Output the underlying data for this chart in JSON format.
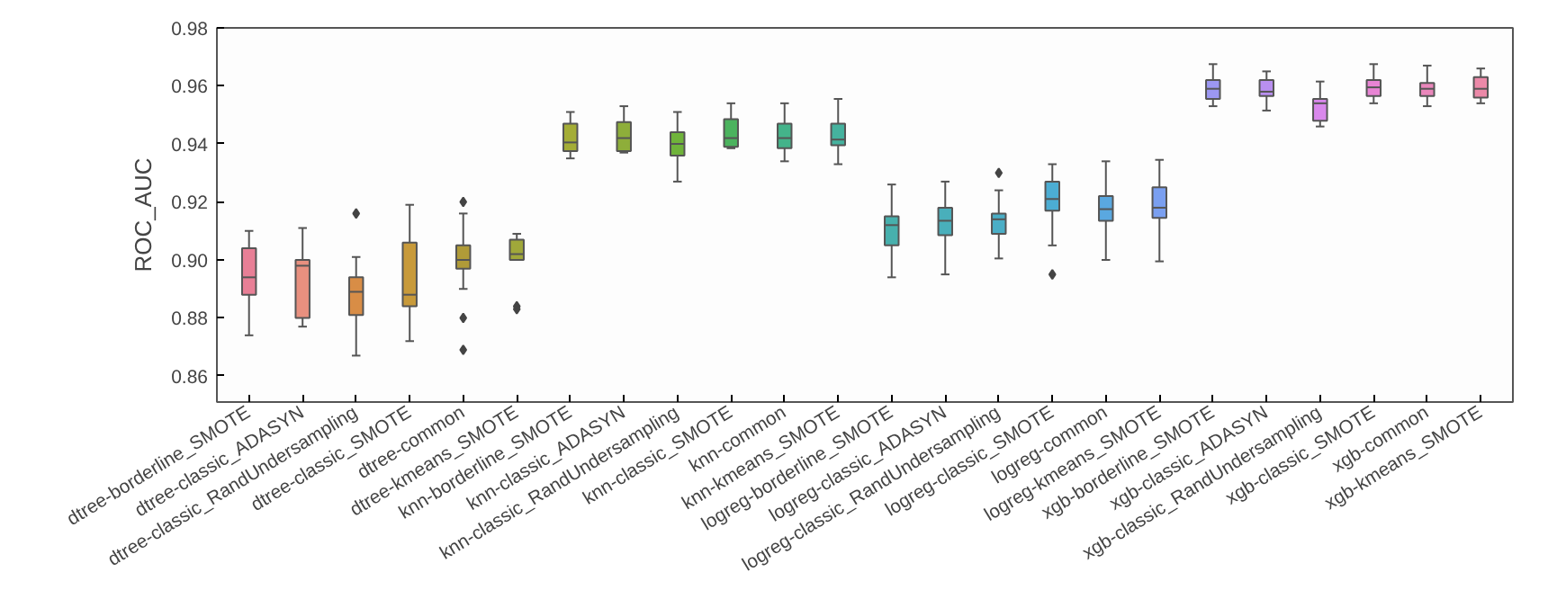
{
  "chart_data": {
    "type": "box",
    "ylabel": "ROC_AUC",
    "ylim": [
      0.851,
      0.98
    ],
    "yticks": [
      {
        "value": 0.86,
        "label": "0.86"
      },
      {
        "value": 0.88,
        "label": "0.88"
      },
      {
        "value": 0.9,
        "label": "0.90"
      },
      {
        "value": 0.92,
        "label": "0.92"
      },
      {
        "value": 0.94,
        "label": "0.94"
      },
      {
        "value": 0.96,
        "label": "0.96"
      },
      {
        "value": 0.98,
        "label": "0.98"
      }
    ],
    "grid": false,
    "categories": [
      "dtree-borderline_SMOTE",
      "dtree-classic_ADASYN",
      "dtree-classic_RandUndersampling",
      "dtree-classic_SMOTE",
      "dtree-common",
      "dtree-kmeans_SMOTE",
      "knn-borderline_SMOTE",
      "knn-classic_ADASYN",
      "knn-classic_RandUndersampling",
      "knn-classic_SMOTE",
      "knn-common",
      "knn-kmeans_SMOTE",
      "logreg-borderline_SMOTE",
      "logreg-classic_ADASYN",
      "logreg-classic_RandUndersampling",
      "logreg-classic_SMOTE",
      "logreg-common",
      "logreg-kmeans_SMOTE",
      "xgb-borderline_SMOTE",
      "xgb-classic_ADASYN",
      "xgb-classic_RandUndersampling",
      "xgb-classic_SMOTE",
      "xgb-common",
      "xgb-kmeans_SMOTE"
    ],
    "colors": [
      "#e87f96",
      "#e8907f",
      "#d88d46",
      "#c89a3a",
      "#b09b38",
      "#a0a83a",
      "#a4ad36",
      "#8eae3a",
      "#6fb33a",
      "#4bb35e",
      "#44b38a",
      "#45b29e",
      "#47b0ad",
      "#49afbb",
      "#4aaec6",
      "#4cadd3",
      "#5aa8e0",
      "#7a9ff0",
      "#9c97f2",
      "#b98ff0",
      "#d988ec",
      "#e884d4",
      "#ea87bb",
      "#ec89a8"
    ],
    "boxes": [
      {
        "low": 0.874,
        "q1": 0.888,
        "median": 0.894,
        "q3": 0.904,
        "high": 0.91
      },
      {
        "low": 0.877,
        "q1": 0.88,
        "median": 0.898,
        "q3": 0.9,
        "high": 0.911
      },
      {
        "low": 0.867,
        "q1": 0.881,
        "median": 0.889,
        "q3": 0.894,
        "high": 0.901,
        "outliers": [
          0.916
        ]
      },
      {
        "low": 0.872,
        "q1": 0.884,
        "median": 0.888,
        "q3": 0.906,
        "high": 0.919
      },
      {
        "low": 0.89,
        "q1": 0.897,
        "median": 0.9,
        "q3": 0.905,
        "high": 0.916,
        "outliers": [
          0.92,
          0.88,
          0.869
        ]
      },
      {
        "low": 0.9,
        "q1": 0.9,
        "median": 0.902,
        "q3": 0.907,
        "high": 0.909,
        "outliers": [
          0.884,
          0.883
        ]
      },
      {
        "low": 0.935,
        "q1": 0.9375,
        "median": 0.9405,
        "q3": 0.947,
        "high": 0.951
      },
      {
        "low": 0.937,
        "q1": 0.9375,
        "median": 0.942,
        "q3": 0.9475,
        "high": 0.953
      },
      {
        "low": 0.927,
        "q1": 0.936,
        "median": 0.94,
        "q3": 0.944,
        "high": 0.951
      },
      {
        "low": 0.9385,
        "q1": 0.939,
        "median": 0.942,
        "q3": 0.9485,
        "high": 0.954
      },
      {
        "low": 0.934,
        "q1": 0.9385,
        "median": 0.942,
        "q3": 0.947,
        "high": 0.954
      },
      {
        "low": 0.933,
        "q1": 0.9395,
        "median": 0.9415,
        "q3": 0.947,
        "high": 0.9555
      },
      {
        "low": 0.894,
        "q1": 0.905,
        "median": 0.912,
        "q3": 0.915,
        "high": 0.926
      },
      {
        "low": 0.895,
        "q1": 0.9085,
        "median": 0.9135,
        "q3": 0.918,
        "high": 0.927
      },
      {
        "low": 0.9005,
        "q1": 0.909,
        "median": 0.914,
        "q3": 0.916,
        "high": 0.924,
        "outliers": [
          0.93
        ]
      },
      {
        "low": 0.905,
        "q1": 0.917,
        "median": 0.921,
        "q3": 0.927,
        "high": 0.933,
        "outliers": [
          0.895
        ]
      },
      {
        "low": 0.9,
        "q1": 0.9135,
        "median": 0.9175,
        "q3": 0.922,
        "high": 0.934
      },
      {
        "low": 0.8995,
        "q1": 0.9145,
        "median": 0.918,
        "q3": 0.925,
        "high": 0.9345
      },
      {
        "low": 0.953,
        "q1": 0.9555,
        "median": 0.959,
        "q3": 0.962,
        "high": 0.9675
      },
      {
        "low": 0.9515,
        "q1": 0.9565,
        "median": 0.958,
        "q3": 0.962,
        "high": 0.965
      },
      {
        "low": 0.946,
        "q1": 0.948,
        "median": 0.954,
        "q3": 0.9555,
        "high": 0.9615
      },
      {
        "low": 0.954,
        "q1": 0.9565,
        "median": 0.9595,
        "q3": 0.962,
        "high": 0.9675
      },
      {
        "low": 0.953,
        "q1": 0.9565,
        "median": 0.959,
        "q3": 0.961,
        "high": 0.967
      },
      {
        "low": 0.954,
        "q1": 0.956,
        "median": 0.959,
        "q3": 0.963,
        "high": 0.966
      }
    ]
  }
}
